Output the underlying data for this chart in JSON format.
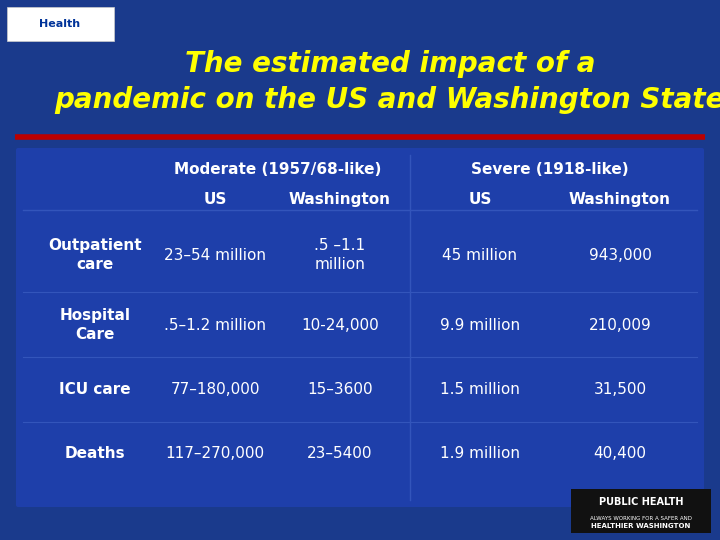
{
  "title_line1": "The estimated impact of a",
  "title_line2": "pandemic on the US and Washington State",
  "title_color": "#FFFF00",
  "bg_color": "#1a3a8c",
  "table_bg_color": "#1e3faa",
  "header1": "Moderate (1957/68-like)",
  "header2": "Severe (1918-like)",
  "col_headers": [
    "US",
    "Washington",
    "US",
    "Washington"
  ],
  "row_labels": [
    "Outpatient\ncare",
    "Hospital\nCare",
    "ICU care",
    "Deaths"
  ],
  "data": [
    [
      "23–54 million",
      ".5 –1.1\nmillion",
      "45 million",
      "943,000"
    ],
    [
      ".5–1.2 million",
      "10-24,000",
      "9.9 million",
      "210,009"
    ],
    [
      "77–180,000",
      "15–3600",
      "1.5 million",
      "31,500"
    ],
    [
      "117–270,000",
      "23–5400",
      "1.9 million",
      "40,400"
    ]
  ],
  "text_color": "#ffffff",
  "red_line_color": "#bb0000",
  "divider_color": "#3355bb",
  "logo_bg": "#ffffff",
  "ph_bg": "#111111"
}
